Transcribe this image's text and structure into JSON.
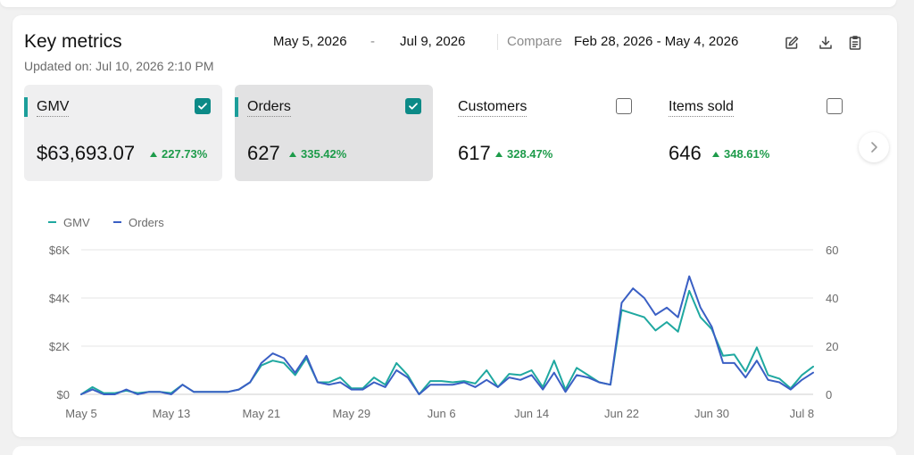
{
  "header": {
    "title": "Key metrics",
    "updated": "Updated on: Jul 10, 2026 2:10 PM",
    "date_start": "May 5, 2026",
    "date_separator": "-",
    "date_end": "Jul 9, 2026",
    "compare_label": "Compare",
    "compare_range": "Feb 28, 2026 - May 4, 2026",
    "actions": [
      "edit-icon",
      "download-icon",
      "clipboard-icon"
    ]
  },
  "metrics": [
    {
      "label": "GMV",
      "value": "$63,693.07",
      "delta": "227.73%",
      "checked": true,
      "selected": true
    },
    {
      "label": "Orders",
      "value": "627",
      "delta": "335.42%",
      "checked": true,
      "selected": true
    },
    {
      "label": "Customers",
      "value": "617",
      "delta": "328.47%",
      "checked": false,
      "selected": false
    },
    {
      "label": "Items sold",
      "value": "646",
      "delta": "348.61%",
      "checked": false,
      "selected": false
    }
  ],
  "colors": {
    "gmv": "#1fa8a0",
    "orders": "#3a5fc4",
    "positive": "#1d9b4a",
    "accent": "#0c8a87"
  },
  "legend": [
    "GMV",
    "Orders"
  ],
  "chart_data": {
    "type": "line",
    "x_ticks": [
      "May 5",
      "May 13",
      "May 21",
      "May 29",
      "Jun 6",
      "Jun 14",
      "Jun 22",
      "Jun 30",
      "Jul 8"
    ],
    "y_left_ticks": [
      "$0",
      "$2K",
      "$4K",
      "$6K"
    ],
    "y_right_ticks": [
      "0",
      "20",
      "40",
      "60"
    ],
    "y_left_range": [
      0,
      6000
    ],
    "y_right_range": [
      0,
      60
    ],
    "grid": true,
    "legend_position": "top-left",
    "series": [
      {
        "name": "GMV",
        "axis": "left",
        "values": [
          0,
          300,
          50,
          50,
          150,
          50,
          100,
          100,
          50,
          400,
          100,
          100,
          100,
          100,
          200,
          500,
          1200,
          1400,
          1300,
          800,
          1500,
          500,
          500,
          700,
          250,
          250,
          700,
          400,
          1300,
          800,
          0,
          550,
          550,
          500,
          550,
          450,
          1000,
          300,
          850,
          800,
          1000,
          300,
          1400,
          200,
          1100,
          800,
          500,
          400,
          3500,
          3350,
          3200,
          2650,
          3000,
          2600,
          4300,
          3200,
          2700,
          1600,
          1650,
          950,
          1950,
          800,
          650,
          250,
          800,
          1150
        ]
      },
      {
        "name": "Orders",
        "axis": "right",
        "values": [
          0,
          2,
          0,
          0,
          2,
          0,
          1,
          1,
          0,
          4,
          1,
          1,
          1,
          1,
          2,
          5,
          13,
          17,
          15,
          9,
          16,
          5,
          4,
          5,
          2,
          2,
          5,
          3,
          10,
          7,
          0,
          4,
          4,
          4,
          5,
          3,
          6,
          3,
          7,
          6,
          8,
          2,
          9,
          1,
          8,
          7,
          5,
          4,
          38,
          44,
          40,
          33,
          36,
          32,
          49,
          36,
          28,
          13,
          13,
          7,
          14,
          6,
          5,
          2,
          6,
          9
        ]
      }
    ]
  }
}
